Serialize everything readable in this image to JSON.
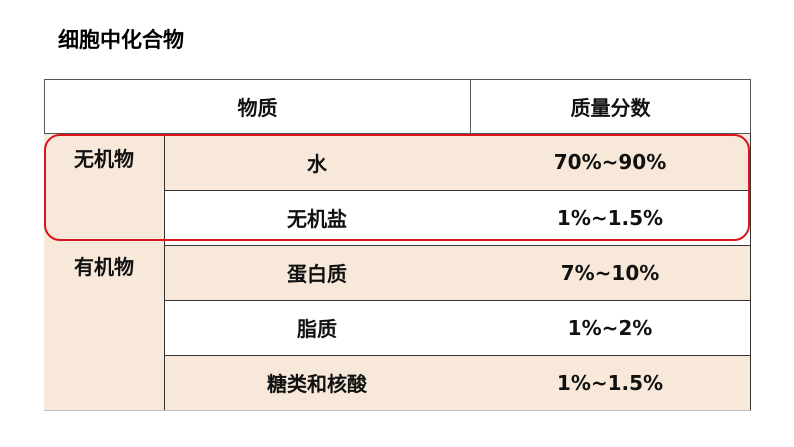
{
  "title": "细胞中化合物",
  "table": {
    "headers": [
      "物质",
      "质量分数"
    ],
    "groups": [
      "无机物",
      "有机物"
    ],
    "rows": [
      {
        "substance": "水",
        "fraction": "70%~90%"
      },
      {
        "substance": "无机盐",
        "fraction": "1%~1.5%"
      },
      {
        "substance": "蛋白质",
        "fraction": "7%~10%"
      },
      {
        "substance": "脂质",
        "fraction": "1%~2%"
      },
      {
        "substance": "糖类和核酸",
        "fraction": "1%~1.5%"
      }
    ]
  },
  "colors": {
    "row_fill": "#f7e8da",
    "highlight": "#d9151b"
  }
}
